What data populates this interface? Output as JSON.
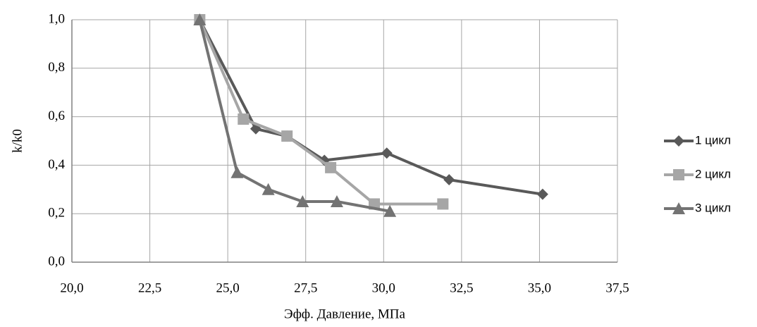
{
  "chart_data": {
    "type": "line",
    "y_label": "k/k0",
    "x_label": "Эфф. Давление, МПа",
    "xlim": [
      20,
      37.5
    ],
    "ylim": [
      0,
      1
    ],
    "xticks": [
      {
        "value": 20,
        "label": "20,0"
      },
      {
        "value": 22.5,
        "label": "22,5"
      },
      {
        "value": 25,
        "label": "25,0"
      },
      {
        "value": 27.5,
        "label": "27,5"
      },
      {
        "value": 30,
        "label": "30,0"
      },
      {
        "value": 32.5,
        "label": "32,5"
      },
      {
        "value": 35,
        "label": "35,0"
      },
      {
        "value": 37.5,
        "label": "37,5"
      }
    ],
    "yticks": [
      {
        "value": 0,
        "label": "0,0"
      },
      {
        "value": 0.2,
        "label": "0,2"
      },
      {
        "value": 0.4,
        "label": "0,4"
      },
      {
        "value": 0.6,
        "label": "0,6"
      },
      {
        "value": 0.8,
        "label": "0,8"
      },
      {
        "value": 1,
        "label": "1,0"
      }
    ],
    "grid": true,
    "legend": "right",
    "series": [
      {
        "name": "1 цикл",
        "color": "#595959",
        "marker": "diamond",
        "x": [
          24.1,
          25.9,
          26.9,
          28.1,
          30.1,
          32.1,
          35.1
        ],
        "values": [
          1.0,
          0.55,
          0.52,
          0.42,
          0.45,
          0.34,
          0.28
        ]
      },
      {
        "name": "2 цикл",
        "color": "#a6a6a6",
        "marker": "square",
        "x": [
          24.1,
          25.5,
          26.9,
          28.3,
          29.7,
          31.9
        ],
        "values": [
          1.0,
          0.59,
          0.52,
          0.39,
          0.24,
          0.24
        ]
      },
      {
        "name": "3 цикл",
        "color": "#737373",
        "marker": "triangle",
        "x": [
          24.1,
          25.3,
          26.3,
          27.4,
          28.5,
          30.2
        ],
        "values": [
          1.0,
          0.37,
          0.3,
          0.25,
          0.25,
          0.21
        ]
      }
    ]
  }
}
